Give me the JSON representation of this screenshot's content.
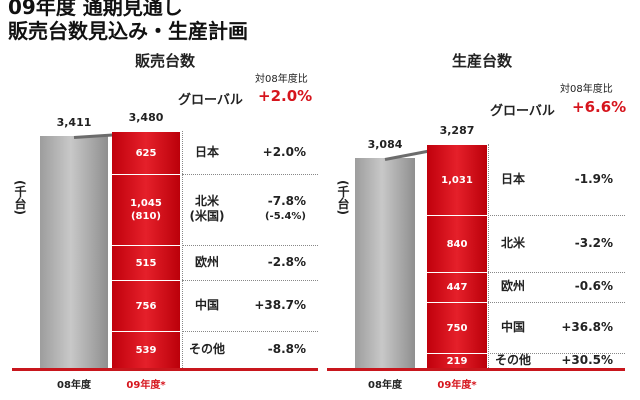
{
  "header": {
    "title_line1": "09年度 通期見通し",
    "title_line2": "販売台数見込み・生産計画"
  },
  "colors": {
    "accent": "#d6151d",
    "bar_prev": "#a8a8a8",
    "bar_curr": "#e01b23"
  },
  "chart_data": [
    {
      "type": "bar",
      "title": "販売台数",
      "ylabel": "(千台)",
      "categories": [
        "08年度",
        "09年度*"
      ],
      "totals": [
        3411,
        3480
      ],
      "total_labels": [
        "3,411",
        "3,480"
      ],
      "comparison_header": "対08年度比",
      "global_label": "グローバル",
      "global_change": "+2.0%",
      "segments": [
        {
          "region": "日本",
          "value": 625,
          "label": "625",
          "change": "+2.0%"
        },
        {
          "region": "北米",
          "region_sub": "(米国)",
          "value": 1045,
          "label": "1,045",
          "sub_label": "(810)",
          "change": "-7.8%",
          "change_sub": "(-5.4%)"
        },
        {
          "region": "欧州",
          "value": 515,
          "label": "515",
          "change": "-2.8%"
        },
        {
          "region": "中国",
          "value": 756,
          "label": "756",
          "change": "+38.7%"
        },
        {
          "region": "その他",
          "value": 539,
          "label": "539",
          "change": "-8.8%"
        }
      ]
    },
    {
      "type": "bar",
      "title": "生産台数",
      "ylabel": "(千台)",
      "categories": [
        "08年度",
        "09年度*"
      ],
      "totals": [
        3084,
        3287
      ],
      "total_labels": [
        "3,084",
        "3,287"
      ],
      "comparison_header": "対08年度比",
      "global_label": "グローバル",
      "global_change": "+6.6%",
      "segments": [
        {
          "region": "日本",
          "value": 1031,
          "label": "1,031",
          "change": "-1.9%"
        },
        {
          "region": "北米",
          "value": 840,
          "label": "840",
          "change": "-3.2%"
        },
        {
          "region": "欧州",
          "value": 447,
          "label": "447",
          "change": "-0.6%"
        },
        {
          "region": "中国",
          "value": 750,
          "label": "750",
          "change": "+36.8%"
        },
        {
          "region": "その他",
          "value": 219,
          "label": "219",
          "change": "+30.5%"
        }
      ]
    }
  ]
}
